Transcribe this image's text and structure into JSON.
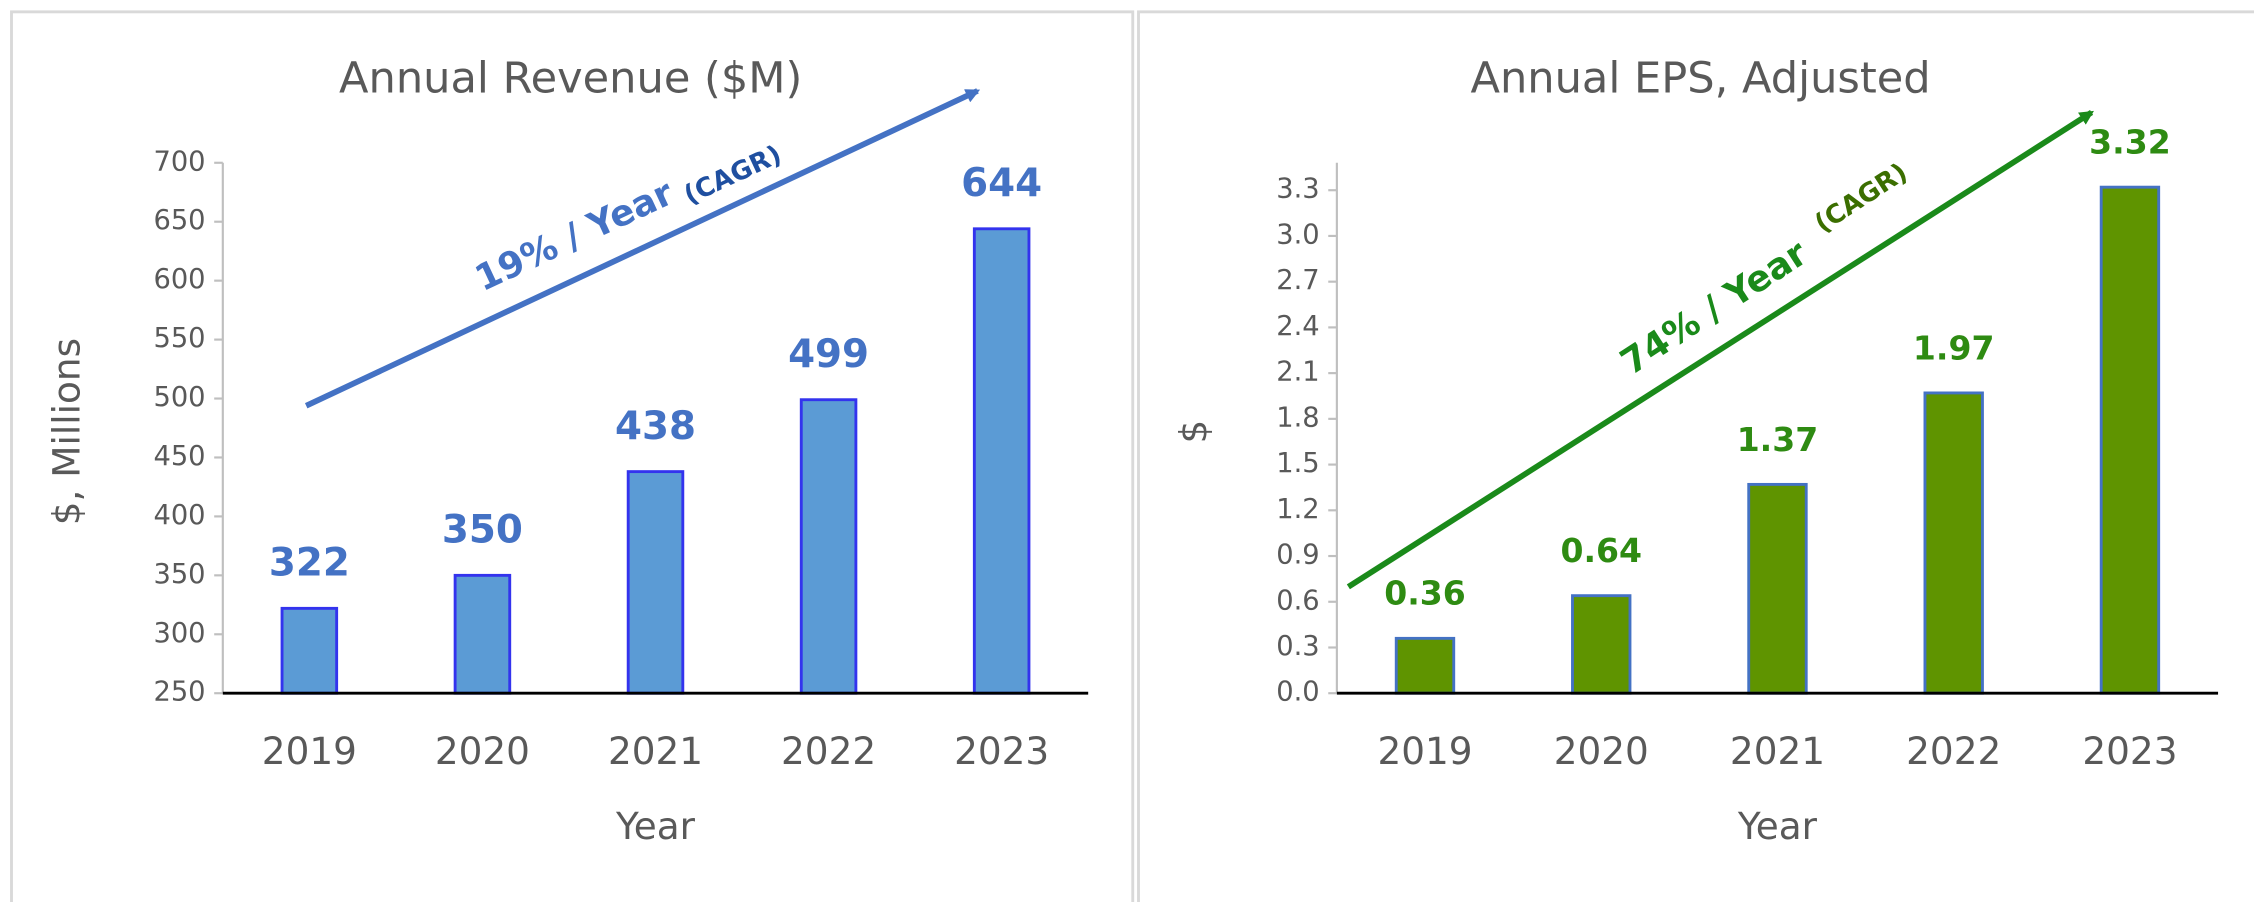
{
  "chart_data": [
    {
      "type": "bar",
      "title": "Annual Revenue ($M)",
      "y_label": "$, Millions",
      "x_label": "Year",
      "categories": [
        "2019",
        "2020",
        "2021",
        "2022",
        "2023"
      ],
      "values": [
        322,
        350,
        438,
        499,
        644
      ],
      "color": "#5b9bd5",
      "edge_color": "#3333ee",
      "label_color": "#4472c4",
      "arrow_color": "#4472c4",
      "note_color": "#1f4fa0",
      "annotation": "19% / Year",
      "annotation_note": "(CAGR)",
      "ylim": [
        250,
        700
      ],
      "yticks": [
        250,
        300,
        350,
        400,
        450,
        500,
        550,
        600,
        650,
        700
      ]
    },
    {
      "type": "bar",
      "title": "Annual EPS, Adjusted",
      "y_label": "$",
      "x_label": "Year",
      "categories": [
        "2019",
        "2020",
        "2021",
        "2022",
        "2023"
      ],
      "values": [
        0.36,
        0.64,
        1.37,
        1.97,
        3.32
      ],
      "color": "#5f9400",
      "edge_color": "#4472c4",
      "label_color": "#2e8b12",
      "arrow_color": "#1a8a1a",
      "note_color": "#3b6e00",
      "annotation": "74% / Year",
      "annotation_note": "(CAGR)",
      "ylim": [
        0,
        3.48
      ],
      "yticks": [
        {
          "value": 0,
          "label": "0.0"
        },
        0.3,
        0.6,
        0.9,
        1.2,
        1.5,
        1.8,
        2.1,
        2.4,
        2.7,
        {
          "value": 3,
          "label": "3.0"
        },
        3.3
      ]
    }
  ]
}
